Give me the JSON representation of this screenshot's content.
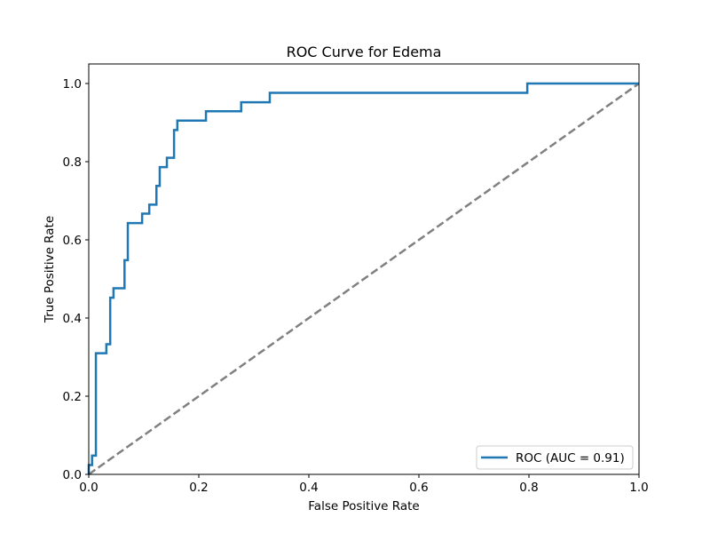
{
  "chart_data": {
    "type": "line",
    "title": "ROC Curve for Edema",
    "xlabel": "False Positive Rate",
    "ylabel": "True Positive Rate",
    "xlim": [
      0.0,
      1.0
    ],
    "ylim": [
      0.0,
      1.05
    ],
    "xticks": [
      0.0,
      0.2,
      0.4,
      0.6,
      0.8,
      1.0
    ],
    "xtick_labels": [
      "0.0",
      "0.2",
      "0.4",
      "0.6",
      "0.8",
      "1.0"
    ],
    "yticks": [
      0.0,
      0.2,
      0.4,
      0.6,
      0.8,
      1.0
    ],
    "ytick_labels": [
      "0.0",
      "0.2",
      "0.4",
      "0.6",
      "0.8",
      "1.0"
    ],
    "grid": false,
    "legend": {
      "placement": "lower-right"
    },
    "series": [
      {
        "name": "ROC (AUC = 0.91)",
        "color": "#1f77b4",
        "style": "solid",
        "x": [
          0.0,
          0.0,
          0.006,
          0.006,
          0.013,
          0.013,
          0.032,
          0.032,
          0.039,
          0.039,
          0.045,
          0.045,
          0.065,
          0.065,
          0.071,
          0.071,
          0.097,
          0.097,
          0.11,
          0.11,
          0.123,
          0.123,
          0.129,
          0.129,
          0.142,
          0.142,
          0.155,
          0.155,
          0.161,
          0.161,
          0.213,
          0.213,
          0.277,
          0.277,
          0.329,
          0.329,
          0.797,
          0.797,
          1.0
        ],
        "y": [
          0.0,
          0.024,
          0.024,
          0.048,
          0.048,
          0.31,
          0.31,
          0.333,
          0.333,
          0.452,
          0.452,
          0.476,
          0.476,
          0.548,
          0.548,
          0.643,
          0.643,
          0.667,
          0.667,
          0.69,
          0.69,
          0.738,
          0.738,
          0.786,
          0.786,
          0.81,
          0.81,
          0.881,
          0.881,
          0.905,
          0.905,
          0.929,
          0.929,
          0.952,
          0.952,
          0.976,
          0.976,
          1.0,
          1.0
        ]
      },
      {
        "color": "#808080",
        "style": "dashed",
        "x": [
          0.0,
          1.0
        ],
        "y": [
          0.0,
          1.0
        ]
      }
    ]
  }
}
